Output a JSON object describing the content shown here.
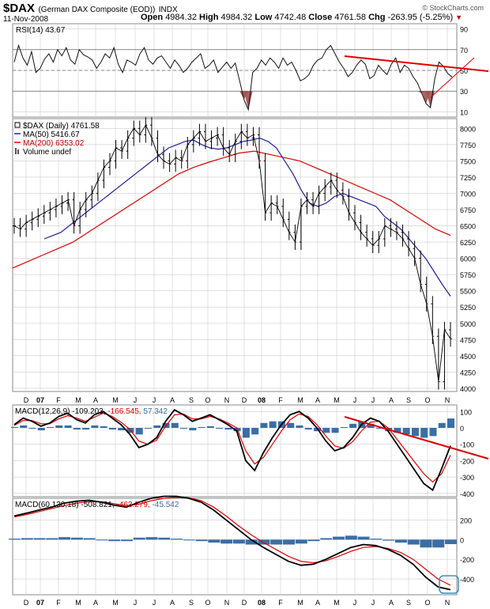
{
  "header": {
    "symbol": "$DAX",
    "description": "(German DAX Composite (EOD))",
    "exchange": "INDX",
    "date": "11-Nov-2008",
    "open_label": "Open",
    "open": "4984.32",
    "high_label": "High",
    "high": "4984.32",
    "low_label": "Low",
    "low": "4742.48",
    "close_label": "Close",
    "close": "4761.58",
    "chg_label": "Chg",
    "chg": "-263.95 (-5.25%)",
    "credit": "© StockCharts.com"
  },
  "colors": {
    "price": "#000000",
    "ma50": "#2020a0",
    "ma200": "#e00000",
    "trendline": "#dd0000",
    "histogram": "#3a6ea5",
    "rsi_fill": "#a05050",
    "grid": "#cccccc",
    "highlight_box": "#3a8fbf"
  },
  "chart_data": [
    {
      "type": "line",
      "title": "RSI(14) 43.67",
      "legend": "RSI(14) 43.67",
      "yticks": [
        10,
        30,
        50,
        70,
        90
      ],
      "ylim": [
        5,
        95
      ],
      "reference_lines": [
        30,
        50,
        70
      ],
      "series": [
        {
          "name": "RSI(14)",
          "values": [
            58,
            74,
            62,
            55,
            68,
            48,
            52,
            61,
            66,
            58,
            70,
            64,
            72,
            60,
            56,
            70,
            65,
            63,
            60,
            52,
            58,
            66,
            62,
            72,
            56,
            48,
            60,
            58,
            55,
            66,
            72,
            60,
            56,
            62,
            64,
            58,
            52,
            60,
            55,
            48,
            52,
            58,
            62,
            66,
            52,
            55,
            60,
            48,
            53,
            58,
            52,
            57,
            40,
            22,
            12,
            48,
            52,
            60,
            55,
            62,
            58,
            52,
            62,
            55,
            58,
            50,
            40,
            42,
            46,
            55,
            60,
            62,
            70,
            74,
            66,
            58,
            52,
            44,
            48,
            55,
            60,
            56,
            42,
            45,
            55,
            50,
            46,
            56,
            62,
            48,
            55,
            52,
            44,
            38,
            28,
            18,
            14,
            42,
            58,
            54,
            47,
            43.67
          ]
        }
      ]
    },
    {
      "type": "line",
      "title": "$DAX (Daily) 4761.58",
      "legend": [
        {
          "label": "$DAX (Daily) 4761.58",
          "color": "#000000"
        },
        {
          "label": "MA(50) 5416.67",
          "color": "#2020a0"
        },
        {
          "label": "MA(200) 6353.02",
          "color": "#e00000"
        },
        {
          "label": "Volume undef",
          "color": "#555555"
        }
      ],
      "yticks": [
        4000,
        4250,
        4500,
        4750,
        5000,
        5250,
        5500,
        5750,
        6000,
        6250,
        6500,
        6750,
        7000,
        7250,
        7500,
        7750,
        8000
      ],
      "ylim": [
        3950,
        8150
      ],
      "series": [
        {
          "name": "$DAX (Daily)",
          "values": [
            6500,
            6450,
            6550,
            6600,
            6650,
            6700,
            6750,
            6800,
            6850,
            6900,
            6500,
            6750,
            6900,
            7000,
            7200,
            7400,
            7500,
            7700,
            7650,
            7850,
            8000,
            7900,
            8050,
            7850,
            7600,
            7500,
            7450,
            7550,
            7500,
            7750,
            7850,
            7950,
            7800,
            7850,
            7900,
            7700,
            7600,
            7800,
            7950,
            7850,
            7900,
            7500,
            6700,
            6850,
            6800,
            6600,
            6400,
            6250,
            6800,
            6900,
            6800,
            7000,
            7100,
            7200,
            7050,
            6950,
            6700,
            6550,
            6400,
            6300,
            6200,
            6300,
            6500,
            6450,
            6400,
            6300,
            6150,
            6000,
            5600,
            5300,
            4800,
            4100,
            4900,
            4761.58
          ]
        },
        {
          "name": "MA(50)",
          "values": [
            6300,
            6350,
            6400,
            6500,
            6600,
            6700,
            6800,
            6900,
            7000,
            7100,
            7200,
            7300,
            7400,
            7500,
            7600,
            7700,
            7750,
            7800,
            7820,
            7750,
            7700,
            7680,
            7700,
            7750,
            7800,
            7820,
            7850,
            7800,
            7700,
            7500,
            7300,
            7050,
            6850,
            6800,
            6850,
            6950,
            7000,
            6950,
            6900,
            6850,
            6800,
            6650,
            6550,
            6450,
            6300,
            6150,
            6000,
            5800,
            5600,
            5416.67
          ]
        },
        {
          "name": "MA(200)",
          "values": [
            5850,
            5950,
            6050,
            6150,
            6250,
            6400,
            6550,
            6700,
            6850,
            7000,
            7150,
            7300,
            7400,
            7480,
            7550,
            7620,
            7650,
            7600,
            7550,
            7500,
            7400,
            7300,
            7200,
            7100,
            7000,
            6900,
            6750,
            6600,
            6450,
            6353.02
          ]
        }
      ]
    },
    {
      "type": "line",
      "title": "MACD(12,26,9) -109.203, -166.545, 57.342",
      "legend": [
        {
          "label": "MACD(12,26,9)",
          "value": "-109.203",
          "color": "#000000"
        },
        {
          "label": "Signal",
          "value": "-166.545",
          "color": "#e00000"
        },
        {
          "label": "Histogram",
          "value": "57.342",
          "color": "#3a6ea5"
        }
      ],
      "yticks": [
        -400,
        -300,
        -200,
        -100,
        0,
        100
      ],
      "ylim": [
        -420,
        140
      ],
      "series": [
        {
          "name": "MACD",
          "values": [
            20,
            60,
            40,
            10,
            30,
            70,
            90,
            50,
            30,
            80,
            100,
            60,
            20,
            -40,
            -120,
            -100,
            -60,
            40,
            110,
            80,
            40,
            60,
            80,
            50,
            20,
            -20,
            -200,
            -260,
            -150,
            -60,
            20,
            80,
            100,
            60,
            0,
            -80,
            -140,
            -120,
            -60,
            20,
            60,
            40,
            -20,
            -100,
            -180,
            -260,
            -340,
            -380,
            -250,
            -109.203
          ]
        },
        {
          "name": "Signal",
          "values": [
            15,
            45,
            45,
            25,
            25,
            55,
            75,
            60,
            40,
            65,
            90,
            70,
            35,
            -10,
            -80,
            -100,
            -75,
            10,
            80,
            85,
            55,
            55,
            70,
            55,
            30,
            0,
            -140,
            -220,
            -180,
            -100,
            -20,
            50,
            85,
            70,
            20,
            -50,
            -110,
            -125,
            -85,
            -20,
            35,
            40,
            0,
            -70,
            -140,
            -210,
            -280,
            -330,
            -280,
            -166.545
          ]
        },
        {
          "name": "Histogram",
          "values": [
            5,
            15,
            -5,
            -15,
            5,
            15,
            15,
            -10,
            -10,
            15,
            10,
            -10,
            -15,
            -30,
            -40,
            0,
            15,
            30,
            30,
            -5,
            -15,
            5,
            10,
            -5,
            -10,
            -20,
            -60,
            -40,
            30,
            40,
            40,
            30,
            15,
            -10,
            -20,
            -30,
            -30,
            5,
            25,
            40,
            25,
            0,
            -20,
            -30,
            -40,
            -50,
            -60,
            -50,
            30,
            57.342
          ]
        }
      ]
    },
    {
      "type": "line",
      "title": "MACD(60,130,18) -508.821, -463.279, -45.542",
      "legend": [
        {
          "label": "MACD(60,130,18)",
          "value": "-508.821",
          "color": "#000000"
        },
        {
          "label": "Signal",
          "value": "-463.279",
          "color": "#e00000"
        },
        {
          "label": "Histogram",
          "value": "-45.542",
          "color": "#3a6ea5"
        }
      ],
      "yticks": [
        -400,
        -200,
        0,
        200
      ],
      "ylim": [
        -560,
        420
      ],
      "series": [
        {
          "name": "MACD",
          "values": [
            240,
            270,
            300,
            330,
            370,
            390,
            400,
            380,
            350,
            330,
            380,
            420,
            440,
            440,
            420,
            380,
            300,
            200,
            100,
            0,
            -80,
            -150,
            -220,
            -260,
            -250,
            -200,
            -140,
            -80,
            -50,
            -60,
            -100,
            -160,
            -250,
            -380,
            -480,
            -508.821
          ]
        },
        {
          "name": "Signal",
          "values": [
            230,
            255,
            285,
            315,
            345,
            370,
            385,
            385,
            365,
            345,
            360,
            395,
            420,
            430,
            425,
            395,
            330,
            240,
            140,
            50,
            -30,
            -100,
            -170,
            -220,
            -235,
            -215,
            -170,
            -120,
            -80,
            -70,
            -90,
            -130,
            -200,
            -300,
            -400,
            -463.279
          ]
        },
        {
          "name": "Histogram",
          "values": [
            10,
            15,
            15,
            15,
            25,
            20,
            15,
            -5,
            -15,
            -15,
            20,
            25,
            20,
            10,
            -5,
            -15,
            -30,
            -40,
            -40,
            -50,
            -50,
            -50,
            -50,
            -40,
            -15,
            15,
            30,
            40,
            30,
            10,
            -10,
            -30,
            -50,
            -80,
            -80,
            -45.542
          ]
        }
      ]
    }
  ],
  "x_axis": {
    "labels": [
      "D",
      "07",
      "F",
      "M",
      "A",
      "M",
      "J",
      "J",
      "A",
      "S",
      "O",
      "N",
      "D",
      "08",
      "F",
      "M",
      "A",
      "M",
      "J",
      "J",
      "A",
      "S",
      "O",
      "N"
    ]
  }
}
